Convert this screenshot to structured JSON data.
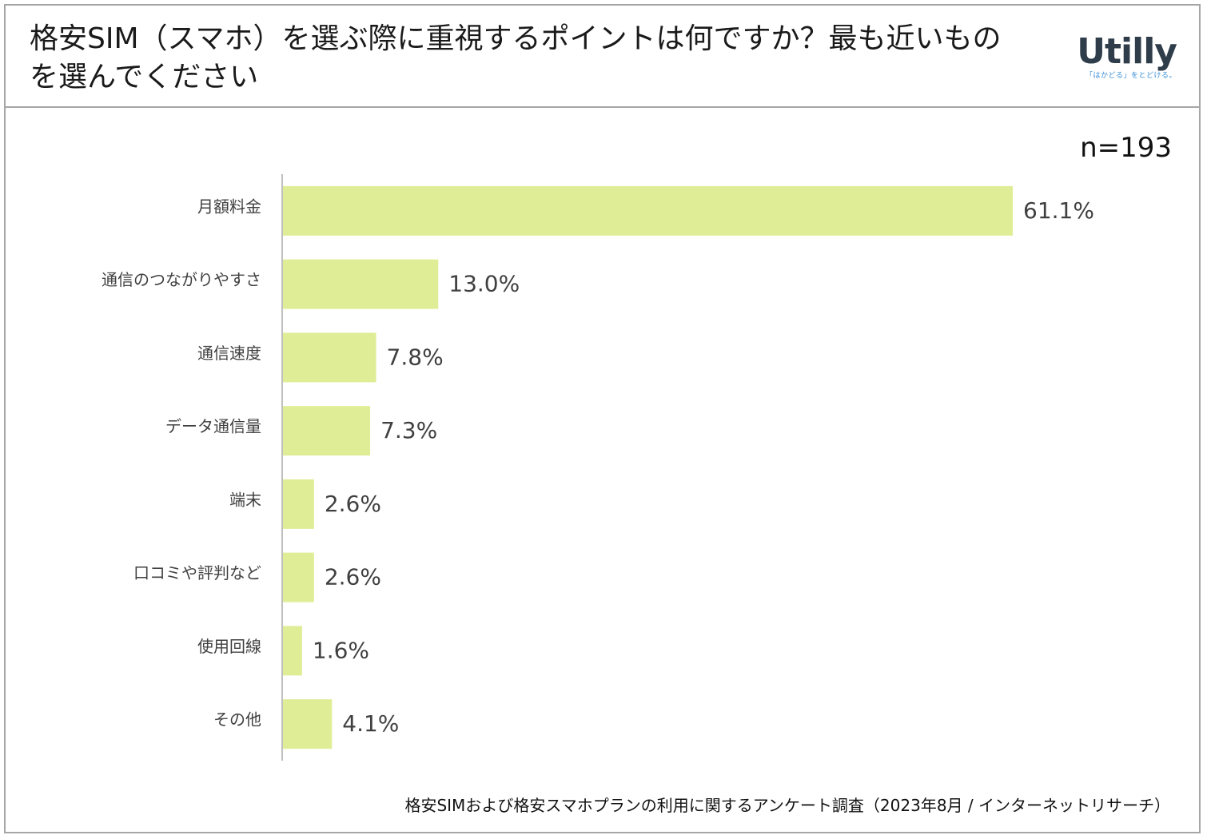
{
  "header": {
    "title": "格安SIM（スマホ）を選ぶ際に重視するポイントは何ですか？最も近いものを選んでください",
    "logo_text": "Utilly",
    "logo_tagline": "「はかどる」をとどける。"
  },
  "sample_size": "n=193",
  "source": "格安SIMおよび格安スマホプランの利用に関するアンケート調査（2023年8月 / インターネットリサーチ）",
  "colors": {
    "bar": "#e0ed97",
    "axis": "#bfbfbf",
    "frame": "#a6a6a6"
  },
  "chart_data": {
    "type": "bar",
    "orientation": "horizontal",
    "title": "格安SIM（スマホ）を選ぶ際に重視するポイントは何ですか？最も近いものを選んでください",
    "categories": [
      "月額料金",
      "通信のつながりやすさ",
      "通信速度",
      "データ通信量",
      "端末",
      "口コミや評判など",
      "使用回線",
      "その他"
    ],
    "values": [
      61.1,
      13.0,
      7.8,
      7.3,
      2.6,
      2.6,
      1.6,
      4.1
    ],
    "value_labels": [
      "61.1%",
      "13.0%",
      "7.8%",
      "7.3%",
      "2.6%",
      "2.6%",
      "1.6%",
      "4.1%"
    ],
    "unit": "%",
    "xlim": [
      0,
      61.1
    ],
    "xlabel": "",
    "ylabel": "",
    "grid": false,
    "legend": "none"
  }
}
